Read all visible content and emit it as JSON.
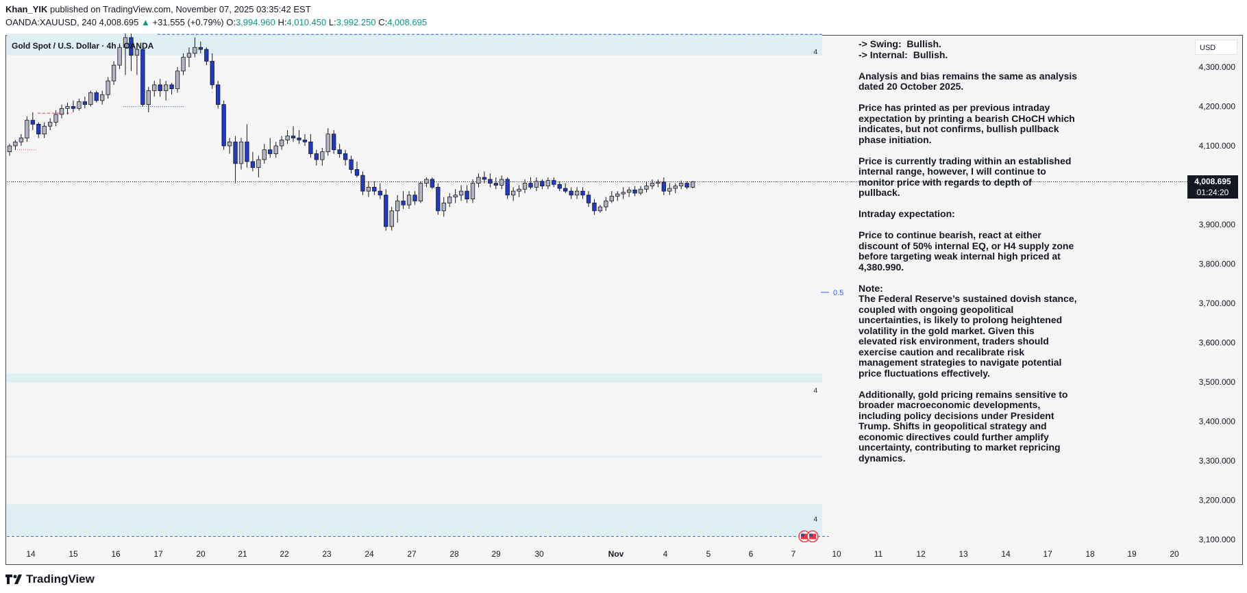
{
  "header": {
    "author": "Khan_YIK",
    "published_text": "published on TradingView.com, November 07, 2025 03:35:42 EST"
  },
  "ohlc": {
    "symbol": "OANDA:XAUUSD, 240",
    "last": "4,008.695",
    "change_arrow": "▲",
    "change": "+31.555 (+0.79%)",
    "o_label": "O:",
    "o": "3,994.960",
    "h_label": "H:",
    "h": "4,010.450",
    "l_label": "L:",
    "l": "3,992.250",
    "c_label": "C:",
    "c": "4,008.695"
  },
  "chart_title": "Gold Spot / U.S. Dollar · 4h · OANDA",
  "currency": "USD",
  "current_price": {
    "price": "4,008.695",
    "countdown": "01:24:20"
  },
  "fib_label": "0.5",
  "zone_label": "4",
  "notes": [
    "-> Swing:  Bullish.",
    "-> Internal:  Bullish.",
    "",
    "Analysis and bias remains the same as analysis",
    "dated 20 October 2025.",
    "",
    "Price has printed as per previous intraday",
    "expectation by printing a bearish CHoCH which",
    "indicates, but not confirms, bullish pullback",
    "phase initiation.",
    "",
    "Price is currently trading within an established",
    "internal range, however, I will continue to",
    "monitor price with regards to depth of",
    "pullback.",
    "",
    "Intraday expectation:",
    "",
    "Price to continue bearish, react at either",
    "discount of 50% internal EQ, or H4 supply zone",
    "before targeting weak internal high priced at",
    "4,380.990.",
    "",
    "Note:",
    "The Federal Reserve’s sustained dovish stance,",
    "coupled with ongoing geopolitical",
    "uncertainties, is likely to prolong heightened",
    "volatility in the gold market. Given this",
    "elevated risk environment, traders should",
    "exercise caution and recalibrate risk",
    "management strategies to navigate potential",
    "price fluctuations effectively.",
    "",
    "Additionally, gold pricing remains sensitive to",
    "broader macroeconomic developments,",
    "including policy decisions under President",
    "Trump. Shifts in geopolitical strategy and",
    "economic directives could further amplify",
    "uncertainty, contributing to market repricing",
    "dynamics."
  ],
  "logo_text": "TradingView",
  "colors": {
    "bull_body": "#b2b5be",
    "bear_body": "#1e3ac6",
    "zone_fill": "#dfeff2",
    "accent_blue": "#2962ff",
    "up_green": "#089981",
    "swing_red": "#f23645"
  },
  "chart_data": {
    "type": "candlestick",
    "title": "Gold Spot / U.S. Dollar · 4h · OANDA",
    "symbol": "XAUUSD",
    "timeframe": "4h",
    "ylim": [
      3080,
      4380
    ],
    "y_ticks": [
      4300,
      4200,
      4100,
      4000,
      3900,
      3800,
      3700,
      3600,
      3500,
      3400,
      3300,
      3200,
      3100
    ],
    "y_tick_labels": [
      "4,300.000",
      "4,200.000",
      "4,100.000",
      "4,000.000",
      "3,900.000",
      "3,800.000",
      "3,700.000",
      "3,600.000",
      "3,500.000",
      "3,400.000",
      "3,300.000",
      "3,200.000",
      "3,100.000"
    ],
    "x_labels": [
      "14",
      "15",
      "16",
      "17",
      "20",
      "21",
      "22",
      "23",
      "24",
      "27",
      "28",
      "29",
      "30",
      "Nov",
      "4",
      "5",
      "6",
      "7",
      "10",
      "11",
      "12",
      "13",
      "14",
      "17",
      "18",
      "19",
      "20"
    ],
    "candles": [
      {
        "o": 4085,
        "h": 4105,
        "l": 4075,
        "c": 4100
      },
      {
        "o": 4100,
        "h": 4115,
        "l": 4090,
        "c": 4110
      },
      {
        "o": 4110,
        "h": 4130,
        "l": 4100,
        "c": 4120
      },
      {
        "o": 4120,
        "h": 4175,
        "l": 4110,
        "c": 4165
      },
      {
        "o": 4165,
        "h": 4185,
        "l": 4140,
        "c": 4155
      },
      {
        "o": 4155,
        "h": 4160,
        "l": 4120,
        "c": 4130
      },
      {
        "o": 4130,
        "h": 4160,
        "l": 4120,
        "c": 4150
      },
      {
        "o": 4150,
        "h": 4170,
        "l": 4140,
        "c": 4160
      },
      {
        "o": 4160,
        "h": 4190,
        "l": 4150,
        "c": 4180
      },
      {
        "o": 4180,
        "h": 4205,
        "l": 4170,
        "c": 4195
      },
      {
        "o": 4195,
        "h": 4210,
        "l": 4180,
        "c": 4200
      },
      {
        "o": 4200,
        "h": 4215,
        "l": 4185,
        "c": 4195
      },
      {
        "o": 4195,
        "h": 4220,
        "l": 4190,
        "c": 4212
      },
      {
        "o": 4212,
        "h": 4225,
        "l": 4195,
        "c": 4205
      },
      {
        "o": 4205,
        "h": 4240,
        "l": 4200,
        "c": 4235
      },
      {
        "o": 4235,
        "h": 4240,
        "l": 4210,
        "c": 4215
      },
      {
        "o": 4215,
        "h": 4240,
        "l": 4205,
        "c": 4230
      },
      {
        "o": 4230,
        "h": 4275,
        "l": 4220,
        "c": 4265
      },
      {
        "o": 4265,
        "h": 4315,
        "l": 4255,
        "c": 4305
      },
      {
        "o": 4305,
        "h": 4360,
        "l": 4295,
        "c": 4350
      },
      {
        "o": 4350,
        "h": 4385,
        "l": 4280,
        "c": 4375
      },
      {
        "o": 4375,
        "h": 4385,
        "l": 4290,
        "c": 4330
      },
      {
        "o": 4330,
        "h": 4355,
        "l": 4280,
        "c": 4345
      },
      {
        "o": 4345,
        "h": 4350,
        "l": 4200,
        "c": 4205
      },
      {
        "o": 4205,
        "h": 4250,
        "l": 4185,
        "c": 4240
      },
      {
        "o": 4240,
        "h": 4265,
        "l": 4225,
        "c": 4255
      },
      {
        "o": 4255,
        "h": 4270,
        "l": 4225,
        "c": 4240
      },
      {
        "o": 4240,
        "h": 4265,
        "l": 4215,
        "c": 4255
      },
      {
        "o": 4255,
        "h": 4260,
        "l": 4230,
        "c": 4245
      },
      {
        "o": 4245,
        "h": 4300,
        "l": 4235,
        "c": 4290
      },
      {
        "o": 4290,
        "h": 4335,
        "l": 4280,
        "c": 4325
      },
      {
        "o": 4325,
        "h": 4350,
        "l": 4300,
        "c": 4335
      },
      {
        "o": 4335,
        "h": 4375,
        "l": 4325,
        "c": 4350
      },
      {
        "o": 4350,
        "h": 4365,
        "l": 4335,
        "c": 4345
      },
      {
        "o": 4345,
        "h": 4350,
        "l": 4305,
        "c": 4315
      },
      {
        "o": 4315,
        "h": 4335,
        "l": 4245,
        "c": 4255
      },
      {
        "o": 4255,
        "h": 4265,
        "l": 4195,
        "c": 4205
      },
      {
        "o": 4205,
        "h": 4215,
        "l": 4090,
        "c": 4100
      },
      {
        "o": 4100,
        "h": 4120,
        "l": 4080,
        "c": 4110
      },
      {
        "o": 4110,
        "h": 4125,
        "l": 4005,
        "c": 4055
      },
      {
        "o": 4055,
        "h": 4120,
        "l": 4040,
        "c": 4110
      },
      {
        "o": 4110,
        "h": 4155,
        "l": 4045,
        "c": 4060
      },
      {
        "o": 4060,
        "h": 4085,
        "l": 4035,
        "c": 4045
      },
      {
        "o": 4045,
        "h": 4075,
        "l": 4020,
        "c": 4065
      },
      {
        "o": 4065,
        "h": 4105,
        "l": 4055,
        "c": 4090
      },
      {
        "o": 4090,
        "h": 4120,
        "l": 4070,
        "c": 4080
      },
      {
        "o": 4080,
        "h": 4110,
        "l": 4070,
        "c": 4100
      },
      {
        "o": 4100,
        "h": 4125,
        "l": 4090,
        "c": 4115
      },
      {
        "o": 4115,
        "h": 4140,
        "l": 4105,
        "c": 4125
      },
      {
        "o": 4125,
        "h": 4150,
        "l": 4110,
        "c": 4120
      },
      {
        "o": 4120,
        "h": 4140,
        "l": 4105,
        "c": 4115
      },
      {
        "o": 4115,
        "h": 4130,
        "l": 4100,
        "c": 4110
      },
      {
        "o": 4110,
        "h": 4130,
        "l": 4070,
        "c": 4080
      },
      {
        "o": 4080,
        "h": 4090,
        "l": 4050,
        "c": 4065
      },
      {
        "o": 4065,
        "h": 4095,
        "l": 4050,
        "c": 4085
      },
      {
        "o": 4085,
        "h": 4145,
        "l": 4075,
        "c": 4130
      },
      {
        "o": 4130,
        "h": 4140,
        "l": 4080,
        "c": 4090
      },
      {
        "o": 4090,
        "h": 4105,
        "l": 4070,
        "c": 4080
      },
      {
        "o": 4080,
        "h": 4090,
        "l": 4050,
        "c": 4065
      },
      {
        "o": 4065,
        "h": 4075,
        "l": 4030,
        "c": 4040
      },
      {
        "o": 4040,
        "h": 4060,
        "l": 4020,
        "c": 4025
      },
      {
        "o": 4025,
        "h": 4035,
        "l": 3975,
        "c": 3985
      },
      {
        "o": 3985,
        "h": 4010,
        "l": 3970,
        "c": 3995
      },
      {
        "o": 3995,
        "h": 4010,
        "l": 3975,
        "c": 3985
      },
      {
        "o": 3985,
        "h": 4005,
        "l": 3965,
        "c": 3975
      },
      {
        "o": 3975,
        "h": 3990,
        "l": 3885,
        "c": 3895
      },
      {
        "o": 3895,
        "h": 3945,
        "l": 3885,
        "c": 3935
      },
      {
        "o": 3935,
        "h": 3975,
        "l": 3905,
        "c": 3960
      },
      {
        "o": 3960,
        "h": 3985,
        "l": 3940,
        "c": 3950
      },
      {
        "o": 3950,
        "h": 3985,
        "l": 3940,
        "c": 3975
      },
      {
        "o": 3975,
        "h": 3985,
        "l": 3950,
        "c": 3960
      },
      {
        "o": 3960,
        "h": 4010,
        "l": 3955,
        "c": 4005
      },
      {
        "o": 4005,
        "h": 4020,
        "l": 3995,
        "c": 4015
      },
      {
        "o": 4015,
        "h": 4020,
        "l": 3990,
        "c": 3995
      },
      {
        "o": 3995,
        "h": 4005,
        "l": 3925,
        "c": 3935
      },
      {
        "o": 3935,
        "h": 3970,
        "l": 3920,
        "c": 3955
      },
      {
        "o": 3955,
        "h": 3980,
        "l": 3945,
        "c": 3970
      },
      {
        "o": 3970,
        "h": 3990,
        "l": 3955,
        "c": 3975
      },
      {
        "o": 3975,
        "h": 4000,
        "l": 3960,
        "c": 3985
      },
      {
        "o": 3985,
        "h": 4000,
        "l": 3955,
        "c": 3965
      },
      {
        "o": 3965,
        "h": 4015,
        "l": 3955,
        "c": 4005
      },
      {
        "o": 4005,
        "h": 4030,
        "l": 3995,
        "c": 4020
      },
      {
        "o": 4020,
        "h": 4035,
        "l": 4005,
        "c": 4015
      },
      {
        "o": 4015,
        "h": 4030,
        "l": 3995,
        "c": 4005
      },
      {
        "o": 4005,
        "h": 4020,
        "l": 3990,
        "c": 4000
      },
      {
        "o": 4000,
        "h": 4025,
        "l": 3990,
        "c": 4015
      },
      {
        "o": 4015,
        "h": 4020,
        "l": 3965,
        "c": 3975
      },
      {
        "o": 3975,
        "h": 3995,
        "l": 3960,
        "c": 3985
      },
      {
        "o": 3985,
        "h": 4000,
        "l": 3970,
        "c": 3990
      },
      {
        "o": 3990,
        "h": 4015,
        "l": 3980,
        "c": 4005
      },
      {
        "o": 4005,
        "h": 4020,
        "l": 3990,
        "c": 3995
      },
      {
        "o": 3995,
        "h": 4020,
        "l": 3985,
        "c": 4010
      },
      {
        "o": 4010,
        "h": 4015,
        "l": 3990,
        "c": 3998
      },
      {
        "o": 3998,
        "h": 4020,
        "l": 3990,
        "c": 4012
      },
      {
        "o": 4012,
        "h": 4020,
        "l": 3995,
        "c": 4002
      },
      {
        "o": 4002,
        "h": 4010,
        "l": 3985,
        "c": 3992
      },
      {
        "o": 3992,
        "h": 4005,
        "l": 3980,
        "c": 3985
      },
      {
        "o": 3985,
        "h": 3995,
        "l": 3965,
        "c": 3975
      },
      {
        "o": 3975,
        "h": 3995,
        "l": 3965,
        "c": 3985
      },
      {
        "o": 3985,
        "h": 3995,
        "l": 3965,
        "c": 3975
      },
      {
        "o": 3975,
        "h": 3985,
        "l": 3945,
        "c": 3955
      },
      {
        "o": 3955,
        "h": 3965,
        "l": 3925,
        "c": 3935
      },
      {
        "o": 3935,
        "h": 3950,
        "l": 3930,
        "c": 3945
      },
      {
        "o": 3945,
        "h": 3970,
        "l": 3935,
        "c": 3960
      },
      {
        "o": 3960,
        "h": 3985,
        "l": 3955,
        "c": 3972
      },
      {
        "o": 3972,
        "h": 3985,
        "l": 3960,
        "c": 3978
      },
      {
        "o": 3978,
        "h": 3995,
        "l": 3965,
        "c": 3982
      },
      {
        "o": 3982,
        "h": 3995,
        "l": 3970,
        "c": 3988
      },
      {
        "o": 3988,
        "h": 3998,
        "l": 3972,
        "c": 3980
      },
      {
        "o": 3980,
        "h": 3998,
        "l": 3975,
        "c": 3990
      },
      {
        "o": 3990,
        "h": 4008,
        "l": 3982,
        "c": 3998
      },
      {
        "o": 3998,
        "h": 4015,
        "l": 3990,
        "c": 4005
      },
      {
        "o": 4005,
        "h": 4015,
        "l": 3995,
        "c": 4008
      },
      {
        "o": 4008,
        "h": 4020,
        "l": 3975,
        "c": 3985
      },
      {
        "o": 3985,
        "h": 4005,
        "l": 3975,
        "c": 3992
      },
      {
        "o": 3992,
        "h": 4005,
        "l": 3980,
        "c": 3998
      },
      {
        "o": 3998,
        "h": 4012,
        "l": 3990,
        "c": 4005
      },
      {
        "o": 4005,
        "h": 4010,
        "l": 3990,
        "c": 3995
      },
      {
        "o": 3995,
        "h": 4011,
        "l": 3992,
        "c": 4009
      }
    ],
    "zones": [
      {
        "name": "supply-zone-top",
        "from": 4330,
        "to": 4385
      },
      {
        "name": "demand-zone-mid",
        "from": 3498,
        "to": 3522
      },
      {
        "name": "thin-zone-low",
        "from": 3308,
        "to": 3313
      },
      {
        "name": "demand-zone-bottom",
        "from": 3110,
        "to": 3190
      }
    ],
    "levels": [
      {
        "name": "current-price-line",
        "price": 4008.695
      },
      {
        "name": "fib-0.5",
        "price": 3728
      }
    ]
  }
}
